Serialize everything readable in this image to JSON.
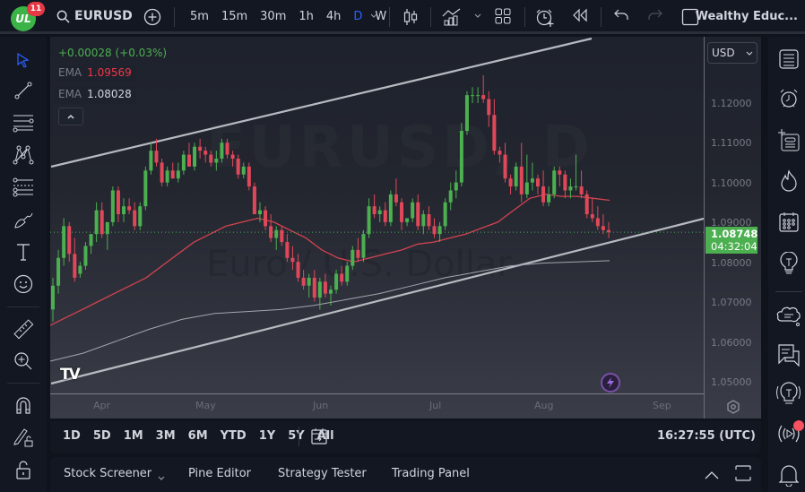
{
  "topbar": {
    "logo_badge": "11",
    "symbol": "EURUSD",
    "intervals": [
      "5m",
      "15m",
      "30m",
      "1h",
      "4h",
      "D",
      "W"
    ],
    "active_interval": "D",
    "brand": "Wealthy Educ..."
  },
  "legend": {
    "change": "+0.00028 (+0.03%)",
    "ema1": {
      "label": "EMA",
      "value": "1.09569",
      "color": "#f23645"
    },
    "ema2": {
      "label": "EMA",
      "value": "1.08028",
      "color": "#d1d4dc"
    }
  },
  "price_axis": {
    "currency": "USD",
    "ticks": [
      "1.12000",
      "1.11000",
      "1.10000",
      "1.09000",
      "1.08000",
      "1.07000",
      "1.06000",
      "1.05000"
    ],
    "last_price": "1.08748",
    "countdown": "04:32:04",
    "last_price_color": "#4caf50"
  },
  "time_axis": {
    "ticks": [
      "Apr",
      "May",
      "Jun",
      "Jul",
      "Aug",
      "Sep"
    ]
  },
  "watermark": {
    "symbol": "EURUSD, D",
    "description": "Euro / U.S. Dollar"
  },
  "range_bar": {
    "ranges": [
      "1D",
      "5D",
      "1M",
      "3M",
      "6M",
      "YTD",
      "1Y",
      "5Y",
      "All"
    ],
    "clock": "16:27:55 (UTC)"
  },
  "bottom_panel": {
    "tabs": [
      "Stock Screener",
      "Pine Editor",
      "Strategy Tester",
      "Trading Panel"
    ]
  },
  "left_tools": [
    "cursor-icon",
    "trend-line-icon",
    "horizontal-lines-icon",
    "pattern-icon",
    "fib-icon",
    "brush-icon",
    "text-icon",
    "emoji-icon",
    "ruler-icon",
    "zoom-in-icon",
    "magnet-icon",
    "lock-drawings-icon",
    "unlock-icon"
  ],
  "right_tools": [
    "watchlist-icon",
    "alerts-icon",
    "data-window-icon",
    "hotlist-icon",
    "calendar-icon",
    "ideas-icon",
    "chat-cloud-icon",
    "messages-icon",
    "streams-icon",
    "live-icon",
    "notifications-icon"
  ],
  "chart_data": {
    "type": "candlestick",
    "symbol": "EURUSD",
    "timeframe": "D",
    "ylim": [
      1.045,
      1.128
    ],
    "months": [
      "Apr",
      "May",
      "Jun",
      "Jul",
      "Aug",
      "Sep"
    ],
    "last_price": 1.08748,
    "ema_fast_last": 1.09569,
    "ema_slow_last": 1.08028,
    "channel_upper": [
      [
        57,
        186
      ],
      [
        660,
        43
      ]
    ],
    "channel_lower": [
      [
        57,
        428
      ],
      [
        785,
        244
      ]
    ],
    "candles": [
      [
        1.068,
        1.076,
        1.065,
        1.074
      ],
      [
        1.074,
        1.083,
        1.072,
        1.081
      ],
      [
        1.081,
        1.091,
        1.079,
        1.089
      ],
      [
        1.089,
        1.09,
        1.08,
        1.082
      ],
      [
        1.082,
        1.086,
        1.075,
        1.076
      ],
      [
        1.077,
        1.08,
        1.076,
        1.079
      ],
      [
        1.079,
        1.085,
        1.078,
        1.084
      ],
      [
        1.084,
        1.087,
        1.082,
        1.087
      ],
      [
        1.087,
        1.095,
        1.085,
        1.093
      ],
      [
        1.093,
        1.095,
        1.086,
        1.087
      ],
      [
        1.087,
        1.09,
        1.083,
        1.09
      ],
      [
        1.09,
        1.099,
        1.089,
        1.098
      ],
      [
        1.098,
        1.099,
        1.09,
        1.092
      ],
      [
        1.092,
        1.096,
        1.09,
        1.094
      ],
      [
        1.094,
        1.096,
        1.092,
        1.093
      ],
      [
        1.093,
        1.095,
        1.088,
        1.089
      ],
      [
        1.089,
        1.095,
        1.088,
        1.094
      ],
      [
        1.094,
        1.104,
        1.093,
        1.103
      ],
      [
        1.103,
        1.11,
        1.102,
        1.108
      ],
      [
        1.108,
        1.111,
        1.104,
        1.105
      ],
      [
        1.105,
        1.106,
        1.099,
        1.1
      ],
      [
        1.1,
        1.104,
        1.099,
        1.103
      ],
      [
        1.103,
        1.105,
        1.101,
        1.101
      ],
      [
        1.101,
        1.105,
        1.1,
        1.103
      ],
      [
        1.103,
        1.108,
        1.102,
        1.107
      ],
      [
        1.107,
        1.11,
        1.104,
        1.104
      ],
      [
        1.104,
        1.11,
        1.103,
        1.109
      ],
      [
        1.109,
        1.111,
        1.106,
        1.108
      ],
      [
        1.108,
        1.109,
        1.105,
        1.107
      ],
      [
        1.107,
        1.108,
        1.104,
        1.105
      ],
      [
        1.105,
        1.108,
        1.103,
        1.106
      ],
      [
        1.106,
        1.111,
        1.105,
        1.11
      ],
      [
        1.11,
        1.111,
        1.106,
        1.107
      ],
      [
        1.107,
        1.108,
        1.104,
        1.106
      ],
      [
        1.106,
        1.107,
        1.101,
        1.102
      ],
      [
        1.102,
        1.105,
        1.101,
        1.104
      ],
      [
        1.104,
        1.105,
        1.098,
        1.099
      ],
      [
        1.099,
        1.1,
        1.092,
        1.092
      ],
      [
        1.092,
        1.095,
        1.09,
        1.093
      ],
      [
        1.093,
        1.094,
        1.088,
        1.089
      ],
      [
        1.089,
        1.092,
        1.085,
        1.086
      ],
      [
        1.086,
        1.089,
        1.083,
        1.088
      ],
      [
        1.088,
        1.089,
        1.084,
        1.085
      ],
      [
        1.085,
        1.087,
        1.08,
        1.081
      ],
      [
        1.081,
        1.084,
        1.078,
        1.08
      ],
      [
        1.08,
        1.082,
        1.075,
        1.076
      ],
      [
        1.076,
        1.078,
        1.073,
        1.074
      ],
      [
        1.074,
        1.077,
        1.071,
        1.076
      ],
      [
        1.076,
        1.078,
        1.07,
        1.071
      ],
      [
        1.071,
        1.076,
        1.068,
        1.075
      ],
      [
        1.075,
        1.077,
        1.071,
        1.072
      ],
      [
        1.072,
        1.074,
        1.069,
        1.073
      ],
      [
        1.073,
        1.078,
        1.072,
        1.077
      ],
      [
        1.077,
        1.079,
        1.074,
        1.075
      ],
      [
        1.075,
        1.08,
        1.074,
        1.079
      ],
      [
        1.079,
        1.084,
        1.078,
        1.083
      ],
      [
        1.083,
        1.086,
        1.08,
        1.081
      ],
      [
        1.081,
        1.088,
        1.08,
        1.087
      ],
      [
        1.087,
        1.096,
        1.086,
        1.094
      ],
      [
        1.094,
        1.097,
        1.091,
        1.092
      ],
      [
        1.092,
        1.094,
        1.09,
        1.093
      ],
      [
        1.093,
        1.095,
        1.089,
        1.09
      ],
      [
        1.09,
        1.098,
        1.089,
        1.097
      ],
      [
        1.097,
        1.101,
        1.094,
        1.095
      ],
      [
        1.095,
        1.096,
        1.088,
        1.09
      ],
      [
        1.09,
        1.091,
        1.089,
        1.091
      ],
      [
        1.091,
        1.096,
        1.09,
        1.095
      ],
      [
        1.095,
        1.097,
        1.088,
        1.089
      ],
      [
        1.089,
        1.093,
        1.087,
        1.092
      ],
      [
        1.092,
        1.094,
        1.088,
        1.089
      ],
      [
        1.089,
        1.091,
        1.086,
        1.087
      ],
      [
        1.087,
        1.09,
        1.085,
        1.089
      ],
      [
        1.089,
        1.096,
        1.088,
        1.095
      ],
      [
        1.095,
        1.1,
        1.093,
        1.098
      ],
      [
        1.098,
        1.103,
        1.096,
        1.1
      ],
      [
        1.1,
        1.115,
        1.099,
        1.113
      ],
      [
        1.113,
        1.123,
        1.112,
        1.122
      ],
      [
        1.122,
        1.124,
        1.12,
        1.122
      ],
      [
        1.122,
        1.124,
        1.12,
        1.122
      ],
      [
        1.122,
        1.127,
        1.12,
        1.121
      ],
      [
        1.121,
        1.123,
        1.114,
        1.117
      ],
      [
        1.117,
        1.121,
        1.107,
        1.108
      ],
      [
        1.108,
        1.109,
        1.105,
        1.107
      ],
      [
        1.107,
        1.11,
        1.1,
        1.101
      ],
      [
        1.101,
        1.102,
        1.097,
        1.099
      ],
      [
        1.099,
        1.105,
        1.098,
        1.104
      ],
      [
        1.104,
        1.11,
        1.095,
        1.097
      ],
      [
        1.097,
        1.107,
        1.096,
        1.1
      ],
      [
        1.1,
        1.105,
        1.098,
        1.101
      ],
      [
        1.101,
        1.102,
        1.097,
        1.099
      ],
      [
        1.099,
        1.103,
        1.094,
        1.095
      ],
      [
        1.095,
        1.099,
        1.094,
        1.097
      ],
      [
        1.097,
        1.104,
        1.096,
        1.103
      ],
      [
        1.103,
        1.104,
        1.099,
        1.102
      ],
      [
        1.102,
        1.103,
        1.096,
        1.098
      ],
      [
        1.098,
        1.101,
        1.096,
        1.099
      ],
      [
        1.099,
        1.107,
        1.098,
        1.099
      ],
      [
        1.099,
        1.103,
        1.096,
        1.097
      ],
      [
        1.097,
        1.098,
        1.091,
        1.092
      ],
      [
        1.092,
        1.096,
        1.09,
        1.091
      ],
      [
        1.091,
        1.094,
        1.088,
        1.089
      ],
      [
        1.089,
        1.092,
        1.087,
        1.088
      ],
      [
        1.088,
        1.09,
        1.086,
        1.0875
      ]
    ],
    "ema_fast": [
      1.064,
      1.066,
      1.068,
      1.07,
      1.072,
      1.074,
      1.076,
      1.079,
      1.082,
      1.085,
      1.087,
      1.089,
      1.09,
      1.091,
      1.09,
      1.088,
      1.086,
      1.083,
      1.081,
      1.08,
      1.081,
      1.082,
      1.083,
      1.0845,
      1.085,
      1.086,
      1.087,
      1.0885,
      1.09,
      1.093,
      1.096,
      1.097,
      1.0965,
      1.0965,
      1.096,
      1.0955
    ],
    "ema_slow": [
      1.055,
      1.057,
      1.06,
      1.063,
      1.0655,
      1.067,
      1.0675,
      1.068,
      1.069,
      1.0705,
      1.072,
      1.074,
      1.076,
      1.0775,
      1.079,
      1.0797,
      1.08,
      1.0803
    ]
  }
}
